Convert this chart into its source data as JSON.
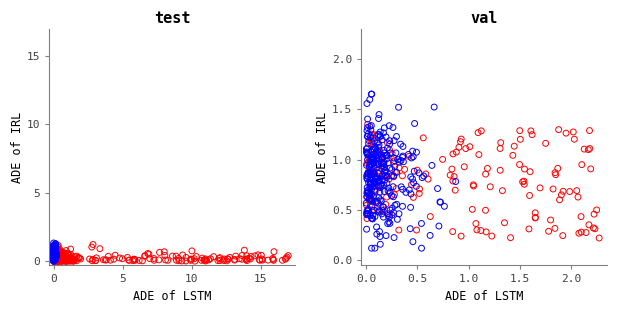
{
  "title_left": "test",
  "title_right": "val",
  "xlabel": "ADE of LSTM",
  "ylabel": "ADE of IRL",
  "test_xlim": [
    -0.3,
    17.5
  ],
  "test_ylim": [
    -0.3,
    17
  ],
  "val_xlim": [
    -0.05,
    2.35
  ],
  "val_ylim": [
    -0.05,
    2.3
  ],
  "test_xticks": [
    0,
    5,
    10,
    15
  ],
  "test_yticks": [
    0,
    5,
    10,
    15
  ],
  "val_xticks": [
    0,
    0.5,
    1.0,
    1.5,
    2.0
  ],
  "val_yticks": [
    0,
    0.5,
    1.0,
    1.5,
    2.0
  ],
  "red_color": "#FF0000",
  "blue_color": "#0000FF",
  "marker_size": 18,
  "linewidth": 0.7,
  "title_fontsize": 11,
  "label_fontsize": 8.5,
  "tick_fontsize": 8,
  "spine_color": "#808080",
  "tick_color": "#808080"
}
